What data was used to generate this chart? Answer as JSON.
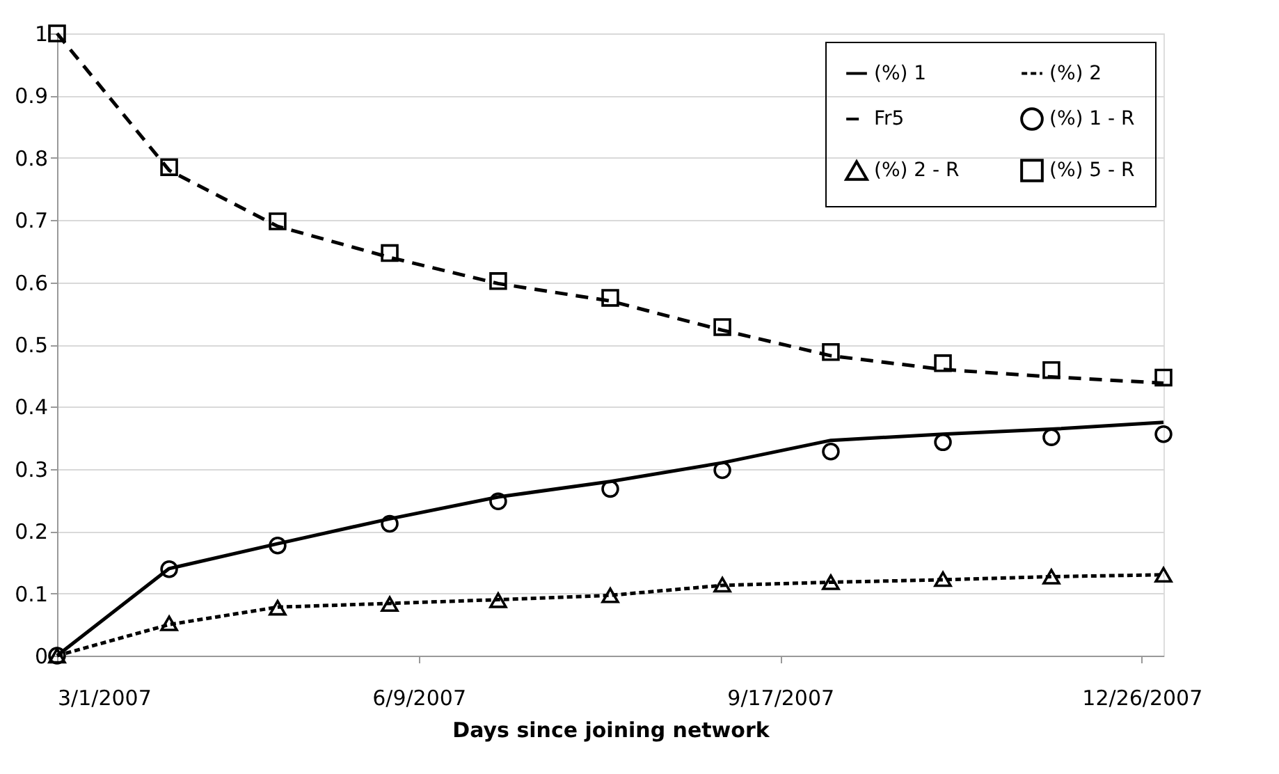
{
  "chart_data": {
    "type": "line",
    "xlabel": "Days since joining network",
    "x": [
      "2007-03-01",
      "2007-04-01",
      "2007-05-01",
      "2007-06-01",
      "2007-07-01",
      "2007-08-01",
      "2007-09-01",
      "2007-10-01",
      "2007-11-01",
      "2007-12-01",
      "2008-01-01"
    ],
    "series": [
      {
        "name": "(%) 1",
        "color": "#000000",
        "line_style": "solid",
        "marker": "none",
        "values": [
          0,
          0.14,
          0.18,
          0.22,
          0.255,
          0.28,
          0.31,
          0.346,
          0.356,
          0.364,
          0.375
        ]
      },
      {
        "name": "(%) 2",
        "color": "#000000",
        "line_style": "dotted",
        "marker": "none",
        "values": [
          0,
          0.05,
          0.078,
          0.084,
          0.09,
          0.097,
          0.113,
          0.118,
          0.122,
          0.127,
          0.13
        ]
      },
      {
        "name": "Fr5",
        "color": "#000000",
        "line_style": "dashed",
        "marker": "none",
        "values": [
          1,
          0.78,
          0.69,
          0.64,
          0.598,
          0.57,
          0.523,
          0.482,
          0.46,
          0.448,
          0.438
        ]
      },
      {
        "name": "(%) 1 - R",
        "color": "#000000",
        "type": "scatter",
        "marker": "circle",
        "values": [
          0,
          0.139,
          0.177,
          0.212,
          0.248,
          0.268,
          0.298,
          0.328,
          0.343,
          0.351,
          0.356
        ]
      },
      {
        "name": "(%) 2 - R",
        "color": "#000000",
        "type": "scatter",
        "marker": "triangle",
        "values": [
          0,
          0.052,
          0.077,
          0.083,
          0.089,
          0.097,
          0.114,
          0.118,
          0.123,
          0.127,
          0.13
        ]
      },
      {
        "name": "(%) 5 - R",
        "color": "#000000",
        "type": "scatter",
        "marker": "square",
        "values": [
          1,
          0.785,
          0.698,
          0.647,
          0.602,
          0.575,
          0.528,
          0.488,
          0.47,
          0.459,
          0.447
        ]
      }
    ],
    "xlim": [
      "2007-03-01",
      "2008-01-01"
    ],
    "xticks": [
      {
        "value": "2007-03-01",
        "label": "3/1/2007"
      },
      {
        "value": "2007-06-09",
        "label": "6/9/2007"
      },
      {
        "value": "2007-09-17",
        "label": "9/17/2007"
      },
      {
        "value": "2007-12-26",
        "label": "12/26/2007"
      }
    ],
    "ylim": [
      0,
      1
    ],
    "yticks": [
      0,
      0.1,
      0.2,
      0.3,
      0.4,
      0.5,
      0.6,
      0.7,
      0.8,
      0.9,
      1
    ],
    "grid": "y",
    "legend": "top right"
  }
}
